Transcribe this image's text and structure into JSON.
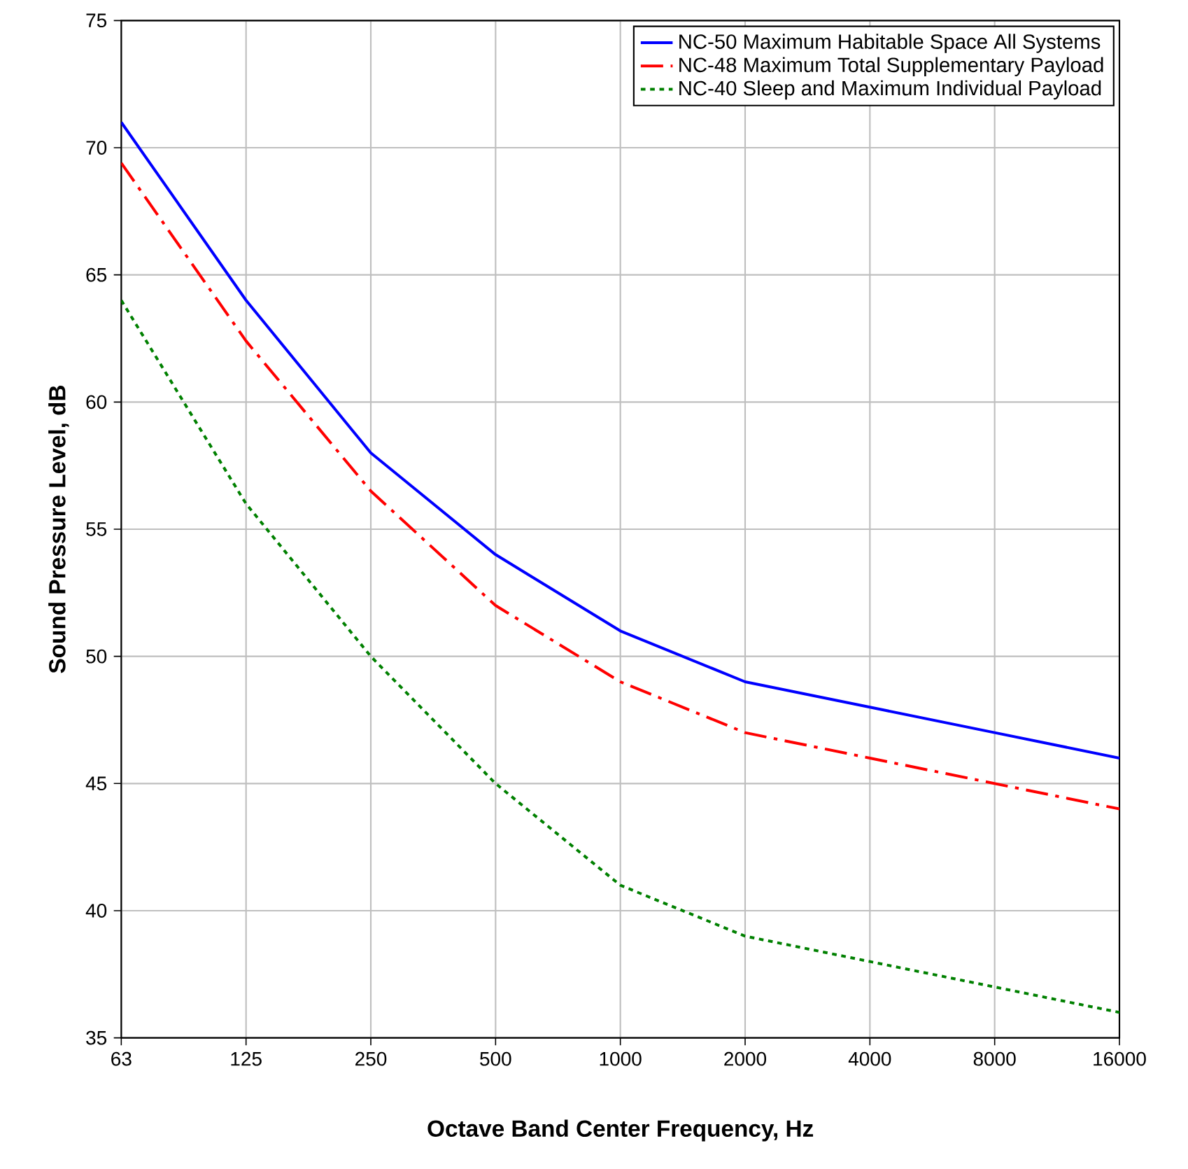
{
  "chart_data": {
    "type": "line",
    "xlabel": "Octave Band Center Frequency, Hz",
    "ylabel": "Sound Pressure Level, dB",
    "categories": [
      "63",
      "125",
      "250",
      "500",
      "1000",
      "2000",
      "4000",
      "8000",
      "16000"
    ],
    "ylim": [
      35,
      75
    ],
    "yticks": [
      35,
      40,
      45,
      50,
      55,
      60,
      65,
      70,
      75
    ],
    "grid": true,
    "legend": "top right",
    "series": [
      {
        "name": "NC-50 Maximum Habitable Space All Systems",
        "color": "#0000ff",
        "line_style": "solid",
        "values": [
          71,
          64,
          58,
          54,
          51,
          49,
          48,
          47,
          46
        ]
      },
      {
        "name": "NC-48 Maximum Total Supplementary Payload",
        "color": "#ff0000",
        "line_style": "dashed",
        "values": [
          69.4,
          62.4,
          56.5,
          52,
          49,
          47,
          46,
          45,
          44
        ]
      },
      {
        "name": "NC-40 Sleep and Maximum Individual Payload",
        "color": "#008000",
        "line_style": "dotted",
        "values": [
          64,
          56,
          50,
          45,
          41,
          39,
          38,
          37,
          36
        ]
      }
    ]
  }
}
